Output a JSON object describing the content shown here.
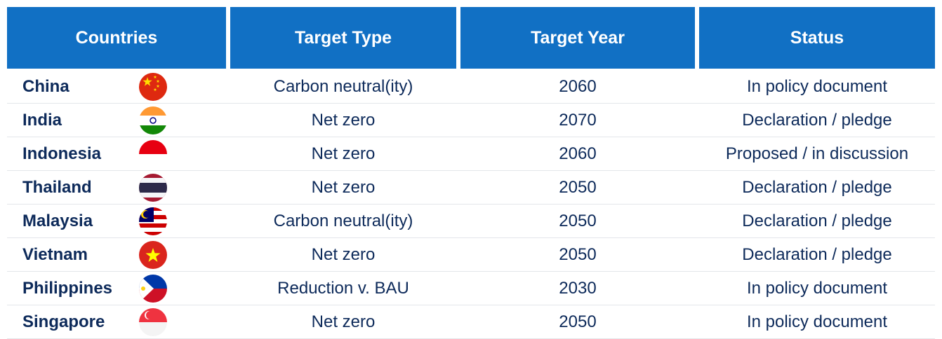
{
  "table": {
    "header": [
      "Countries",
      "Target Type",
      "Target Year",
      "Status"
    ],
    "rows": [
      [
        "China",
        "Carbon neutral(ity)",
        2060,
        "In policy document"
      ],
      [
        "India",
        "Net zero",
        2070,
        "Declaration / pledge"
      ],
      [
        "Indonesia",
        "Net zero",
        2060,
        "Proposed / in discussion"
      ],
      [
        "Thailand",
        "Net zero",
        2050,
        "Declaration / pledge"
      ],
      [
        "Malaysia",
        "Carbon neutral(ity)",
        2050,
        "Declaration / pledge"
      ],
      [
        "Vietnam",
        "Net zero",
        2050,
        "Declaration / pledge"
      ],
      [
        "Philippines",
        "Reduction v. BAU",
        2030,
        "In policy document"
      ],
      [
        "Singapore",
        "Net zero",
        2050,
        "In policy document"
      ]
    ]
  }
}
